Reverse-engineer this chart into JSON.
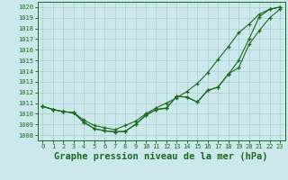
{
  "background_color": "#cce8ec",
  "grid_color": "#aacccc",
  "line_color": "#1a6b1a",
  "title": "Graphe pression niveau de la mer (hPa)",
  "title_fontsize": 7.5,
  "xlim": [
    -0.5,
    23.5
  ],
  "ylim": [
    1007.5,
    1020.5
  ],
  "xticks": [
    0,
    1,
    2,
    3,
    4,
    5,
    6,
    7,
    8,
    9,
    10,
    11,
    12,
    13,
    14,
    15,
    16,
    17,
    18,
    19,
    20,
    21,
    22,
    23
  ],
  "yticks": [
    1008,
    1009,
    1010,
    1011,
    1012,
    1013,
    1014,
    1015,
    1016,
    1017,
    1018,
    1019,
    1020
  ],
  "series1": [
    1010.7,
    1010.4,
    1010.2,
    1010.1,
    1009.2,
    1008.6,
    1008.4,
    1008.3,
    1008.35,
    1009.0,
    1009.85,
    1010.4,
    1010.5,
    1011.65,
    1011.55,
    1011.1,
    1012.2,
    1012.5,
    1013.7,
    1015.0,
    1017.0,
    1019.1,
    1019.8,
    1020.0
  ],
  "series2": [
    1010.7,
    1010.4,
    1010.2,
    1010.1,
    1009.2,
    1008.6,
    1008.4,
    1008.3,
    1008.35,
    1009.0,
    1009.85,
    1010.4,
    1010.55,
    1011.65,
    1011.55,
    1011.1,
    1012.2,
    1012.5,
    1013.75,
    1014.3,
    1016.5,
    1017.8,
    1019.0,
    1019.8
  ],
  "series3": [
    1010.7,
    1010.4,
    1010.2,
    1010.1,
    1009.4,
    1008.9,
    1008.7,
    1008.5,
    1008.9,
    1009.3,
    1010.0,
    1010.55,
    1011.0,
    1011.5,
    1012.1,
    1012.85,
    1013.85,
    1015.1,
    1016.3,
    1017.6,
    1018.4,
    1019.35,
    1019.8,
    1020.0
  ]
}
